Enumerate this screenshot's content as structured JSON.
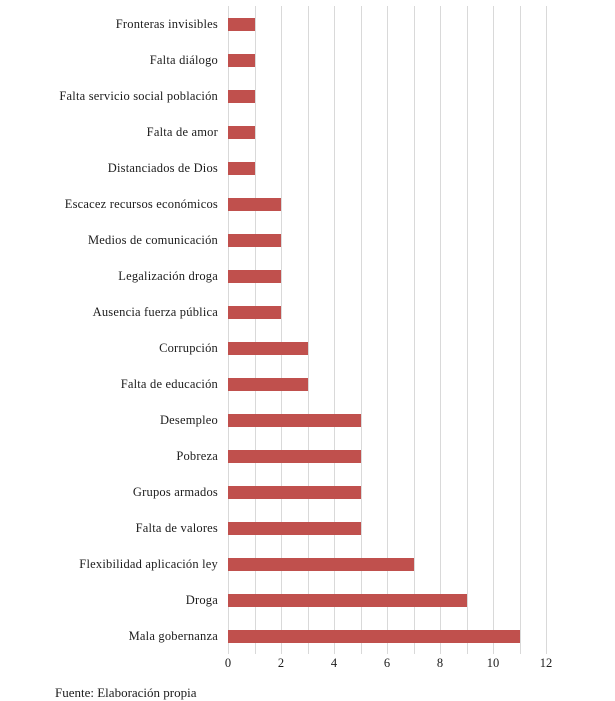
{
  "chart_data": {
    "type": "bar",
    "orientation": "horizontal",
    "title": "",
    "xlabel": "",
    "ylabel": "",
    "categories": [
      "Fronteras invisibles",
      "Falta diálogo",
      "Falta servicio social población",
      "Falta de amor",
      "Distanciados de Dios",
      "Escacez recursos económicos",
      "Medios de comunicación",
      "Legalización droga",
      "Ausencia fuerza pública",
      "Corrupción",
      "Falta de educación",
      "Desempleo",
      "Pobreza",
      "Grupos armados",
      "Falta de valores",
      "Flexibilidad aplicación ley",
      "Droga",
      "Mala gobernanza"
    ],
    "values": [
      1,
      1,
      1,
      1,
      1,
      2,
      2,
      2,
      2,
      3,
      3,
      5,
      5,
      5,
      5,
      7,
      9,
      11
    ],
    "xlim": [
      0,
      12
    ],
    "x_ticks": [
      0,
      2,
      4,
      6,
      8,
      10,
      12
    ],
    "minor_grid_step": 1,
    "grid": true,
    "legend": "none",
    "bar_color": "#c0504d",
    "grid_color": "#d9d9d9"
  },
  "source_note": "Fuente: Elaboración propia"
}
